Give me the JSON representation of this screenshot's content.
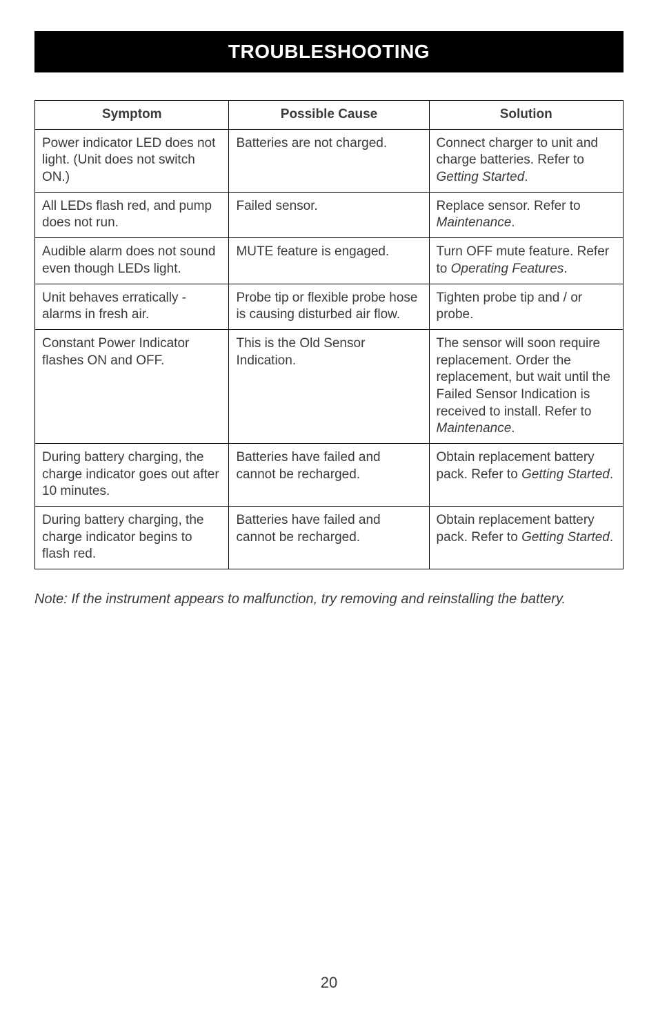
{
  "banner": {
    "title": "TROUBLESHOOTING"
  },
  "table": {
    "headers": [
      "Symptom",
      "Possible Cause",
      "Solution"
    ],
    "rows": [
      {
        "symptom": "Power indicator LED does not light. (Unit does not switch ON.)",
        "cause": "Batteries are not charged.",
        "solution_pre": "Connect charger to unit and charge batteries. Refer to ",
        "solution_em": "Getting Started",
        "solution_post": "."
      },
      {
        "symptom": "All LEDs flash red, and pump does not run.",
        "cause": "Failed sensor.",
        "solution_pre": "Replace sensor. Refer to ",
        "solution_em": "Maintenance",
        "solution_post": "."
      },
      {
        "symptom": "Audible alarm does not sound even though LEDs light.",
        "cause": "MUTE feature is engaged.",
        "solution_pre": "Turn OFF mute feature. Refer to ",
        "solution_em": "Operating Features",
        "solution_post": "."
      },
      {
        "symptom": "Unit behaves erratically - alarms in fresh air.",
        "cause": "Probe tip or flexible probe hose is causing disturbed air flow.",
        "solution_pre": "Tighten probe tip and / or probe.",
        "solution_em": "",
        "solution_post": ""
      },
      {
        "symptom": "Constant Power Indicator flashes ON and OFF.",
        "cause": "This is the Old Sensor Indication.",
        "solution_pre": "The sensor will soon require replacement. Order the replacement, but wait until the Failed Sensor Indication is received to install. Refer to ",
        "solution_em": "Maintenance",
        "solution_post": "."
      },
      {
        "symptom": "During battery charging, the charge indicator goes out after 10 minutes.",
        "cause": "Batteries have failed and cannot be recharged.",
        "solution_pre": "Obtain replacement battery pack. Refer to ",
        "solution_em": "Getting Started",
        "solution_post": "."
      },
      {
        "symptom": "During battery charging, the charge indicator begins to flash red.",
        "cause": "Batteries have failed and cannot be recharged.",
        "solution_pre": "Obtain replacement battery pack. Refer to ",
        "solution_em": "Getting Started",
        "solution_post": "."
      }
    ]
  },
  "note": "Note: If the instrument appears to malfunction, try removing and reinstalling the battery.",
  "page_number": "20"
}
